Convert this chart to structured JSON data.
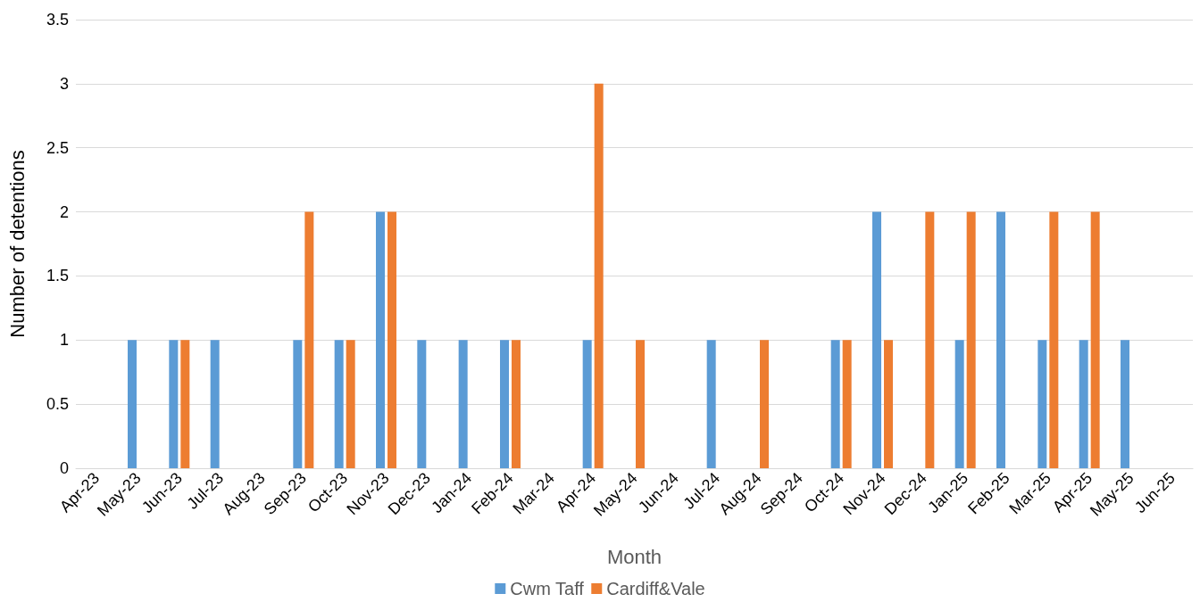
{
  "chart_data": {
    "type": "bar",
    "xlabel": "Month",
    "ylabel": "Number of detentions",
    "categories": [
      "Apr-23",
      "May-23",
      "Jun-23",
      "Jul-23",
      "Aug-23",
      "Sep-23",
      "Oct-23",
      "Nov-23",
      "Dec-23",
      "Jan-24",
      "Feb-24",
      "Mar-24",
      "Apr-24",
      "May-24",
      "Jun-24",
      "Jul-24",
      "Aug-24",
      "Sep-24",
      "Oct-24",
      "Nov-24",
      "Dec-24",
      "Jan-25",
      "Feb-25",
      "Mar-25",
      "Apr-25",
      "May-25",
      "Jun-25"
    ],
    "series": [
      {
        "name": "Cwm Taff",
        "color": "#5b9bd5",
        "values": [
          0,
          1,
          1,
          1,
          0,
          1,
          1,
          2,
          1,
          1,
          1,
          0,
          1,
          0,
          0,
          1,
          0,
          0,
          1,
          2,
          0,
          1,
          2,
          1,
          1,
          1,
          0
        ]
      },
      {
        "name": "Cardiff&Vale",
        "color": "#ed7d31",
        "values": [
          0,
          0,
          1,
          0,
          0,
          2,
          1,
          2,
          0,
          0,
          1,
          0,
          3,
          1,
          0,
          0,
          1,
          0,
          1,
          1,
          2,
          2,
          0,
          2,
          2,
          0,
          0
        ]
      }
    ],
    "ylim": [
      0,
      3.5
    ],
    "yticks": [
      0,
      0.5,
      1,
      1.5,
      2,
      2.5,
      3,
      3.5
    ],
    "grid": "y",
    "legend": "bottom"
  }
}
